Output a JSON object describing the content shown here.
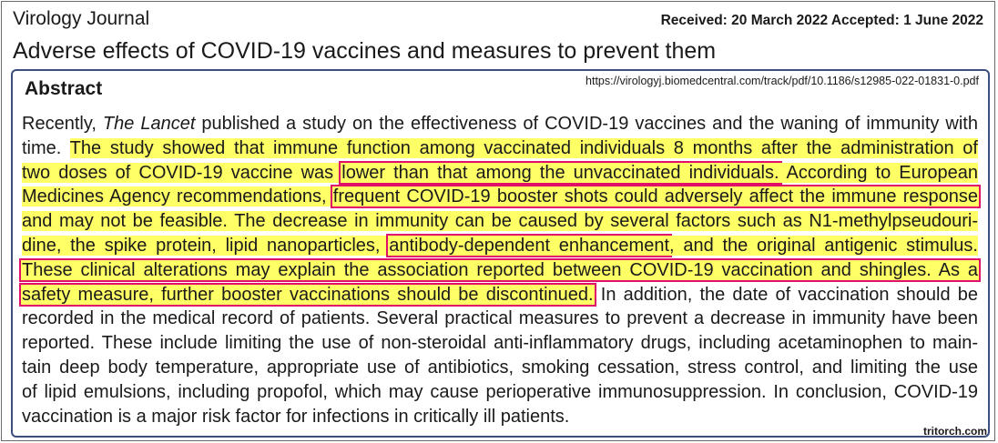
{
  "header": {
    "journal": "Virology Journal",
    "dates": "Received: 20 March 2022  Accepted: 1 June 2022",
    "title": "Adverse effects of COVID-19 vaccines and measures to prevent them"
  },
  "abstract": {
    "heading": "Abstract",
    "url": "https://virologyj.biomedcentral.com/track/pdf/10.1186/s12985-022-01831-0.pdf",
    "lines": [
      [
        {
          "t": "Recently, "
        },
        {
          "t": "The Lancet",
          "s": "it"
        },
        {
          "t": " published a study on the effectiveness of COVID-19 vaccines and the waning of immunity with"
        }
      ],
      [
        {
          "t": "time. "
        },
        {
          "t": "The study showed that immune function among vaccinated individuals 8 months after the administration of",
          "s": "hl"
        }
      ],
      [
        {
          "t": "two doses of COVID-19 vaccine was ",
          "s": "hl"
        },
        {
          "t": "lower than that among the unvaccinated individuals.",
          "s": "hl box"
        },
        {
          "t": " According to European",
          "s": "hl"
        }
      ],
      [
        {
          "t": "Medicines Agency recommendations, ",
          "s": "hl"
        },
        {
          "t": "frequent COVID-19 booster shots could adversely affect the immune response",
          "s": "hl box"
        }
      ],
      [
        {
          "t": "and may not be feasible. The decrease in immunity can be caused by several factors such as N1-methylpseudouri-",
          "s": "hl"
        }
      ],
      [
        {
          "t": "dine, the spike protein, lipid nanoparticles, ",
          "s": "hl"
        },
        {
          "t": "antibody-dependent enhancement",
          "s": "hl box"
        },
        {
          "t": ", and the original antigenic stimulus.",
          "s": "hl"
        }
      ],
      [
        {
          "t": "These clinical alterations may explain the association reported between COVID-19 vaccination and shingles. As a",
          "s": "hl box"
        }
      ],
      [
        {
          "t": "safety measure, further booster vaccinations should be discontinued.",
          "s": "hl box"
        },
        {
          "t": " In addition, the date of vaccination should be"
        }
      ],
      [
        {
          "t": "recorded in the medical record of patients. Several practical measures to prevent a decrease in immunity have been"
        }
      ],
      [
        {
          "t": "reported. These include limiting the use of non-steroidal anti-inflammatory drugs, including acetaminophen to main-"
        }
      ],
      [
        {
          "t": "tain deep body temperature, appropriate use of antibiotics, smoking cessation, stress control, and limiting the use"
        }
      ],
      [
        {
          "t": "of lipid emulsions, including propofol, which may cause perioperative immunosuppression. In conclusion, COVID-19"
        }
      ],
      [
        {
          "t": "vaccination is a major risk factor for infections in critically ill patients."
        }
      ]
    ]
  },
  "credit": "tritorch.com",
  "colors": {
    "highlight": "#ffff66",
    "box_border": "#e0106a",
    "frame_border": "#3b4e7e"
  }
}
